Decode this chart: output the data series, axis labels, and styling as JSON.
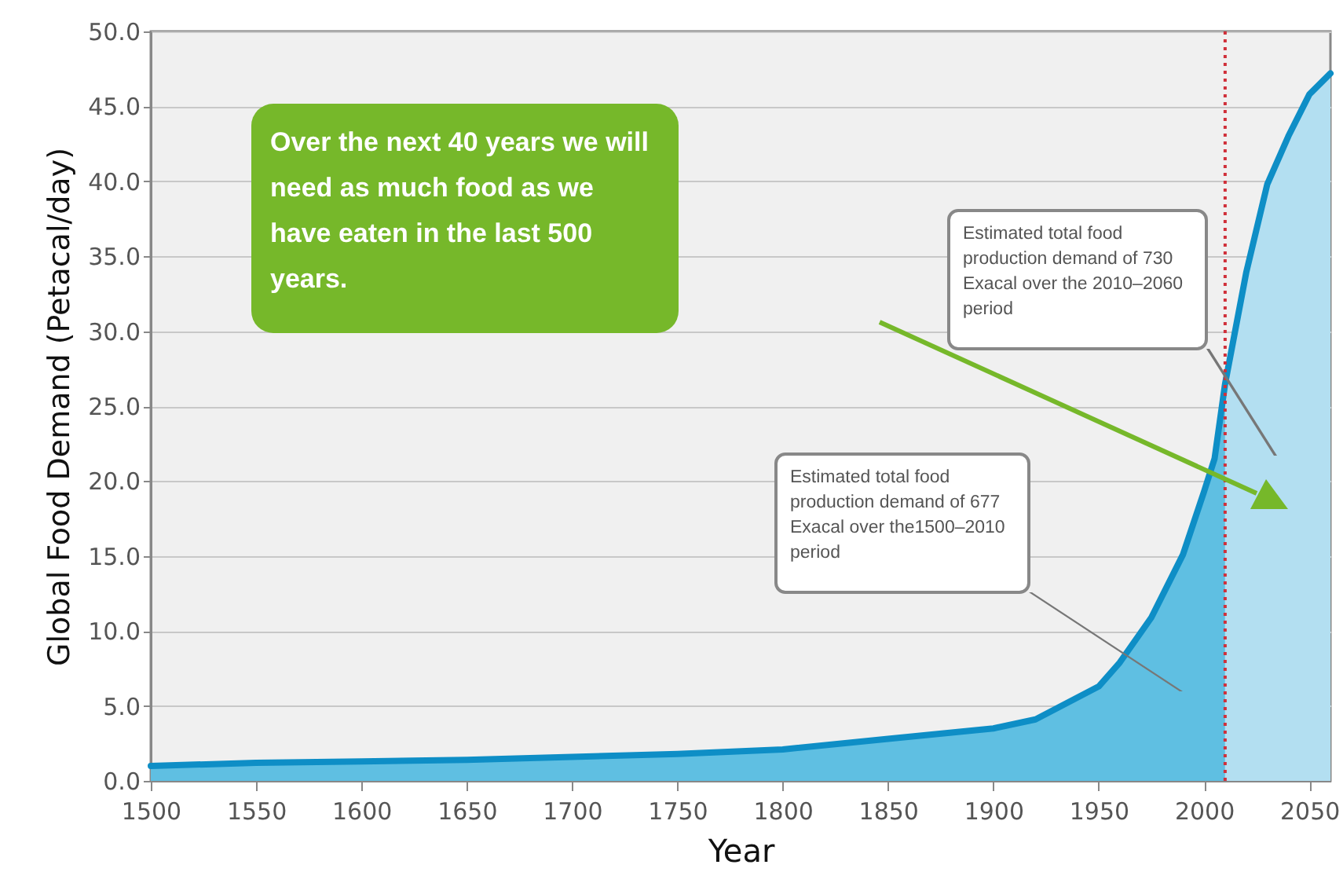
{
  "chart_data": {
    "type": "area",
    "xlabel": "Year",
    "ylabel": "Global Food Demand (Petacal/day)",
    "xlim": [
      1500,
      2060
    ],
    "xticks": [
      1500,
      1550,
      1600,
      1650,
      1700,
      1750,
      1800,
      1850,
      1900,
      1950,
      2000,
      2050
    ],
    "ylim": [
      0,
      50
    ],
    "yticks": [
      {
        "value": 0,
        "label": "0.0"
      },
      {
        "value": 5,
        "label": "5.0"
      },
      {
        "value": 10,
        "label": "10.0"
      },
      {
        "value": 15,
        "label": "15.0"
      },
      {
        "value": 20,
        "label": "20.0"
      },
      {
        "value": 25,
        "label": "25.0"
      },
      {
        "value": 30,
        "label": "30.0"
      },
      {
        "value": 35,
        "label": "35.0"
      },
      {
        "value": 40,
        "label": "40.0"
      },
      {
        "value": 45,
        "label": "45.0"
      },
      {
        "value": 50,
        "label": "50.0"
      }
    ],
    "grid": "y",
    "series": [
      {
        "color": "#5fbfe2",
        "x": [
          1500,
          1550,
          1600,
          1650,
          1700,
          1750,
          1800,
          1850,
          1900,
          1920,
          1950,
          1960,
          1975,
          1990,
          2000,
          2005,
          2010
        ],
        "values": [
          1.0,
          1.2,
          1.3,
          1.4,
          1.6,
          1.8,
          2.1,
          2.8,
          3.5,
          4.1,
          6.3,
          7.9,
          10.9,
          15.1,
          19.3,
          21.5,
          26.5
        ]
      },
      {
        "color": "#b3dff1",
        "x": [
          2010,
          2020,
          2030,
          2040,
          2050,
          2060
        ],
        "values": [
          26.5,
          33.9,
          39.8,
          43.0,
          45.8,
          47.2
        ]
      },
      {
        "type": "line",
        "color": "#0e8ec6",
        "x": [
          1500,
          1550,
          1600,
          1650,
          1700,
          1750,
          1800,
          1850,
          1900,
          1920,
          1950,
          1960,
          1975,
          1990,
          2000,
          2005,
          2010,
          2020,
          2030,
          2040,
          2050,
          2060
        ],
        "values": [
          1.0,
          1.2,
          1.3,
          1.4,
          1.6,
          1.8,
          2.1,
          2.8,
          3.5,
          4.1,
          6.3,
          7.9,
          10.9,
          15.1,
          19.3,
          21.5,
          26.5,
          33.9,
          39.8,
          43.0,
          45.8,
          47.2
        ]
      }
    ],
    "ref_lines": [
      {
        "axis": "x",
        "value": 2010,
        "color": "#d0303a",
        "line_style": "dotted"
      }
    ],
    "annotations": [
      "Over the next 40 years we will need as much food as we have eaten in the last 500 years.",
      "Estimated total food production demand of 730 Exacal over the 2010–2060 period",
      "Estimated total food production demand of 677 Exacal over the1500–2010 period"
    ]
  }
}
